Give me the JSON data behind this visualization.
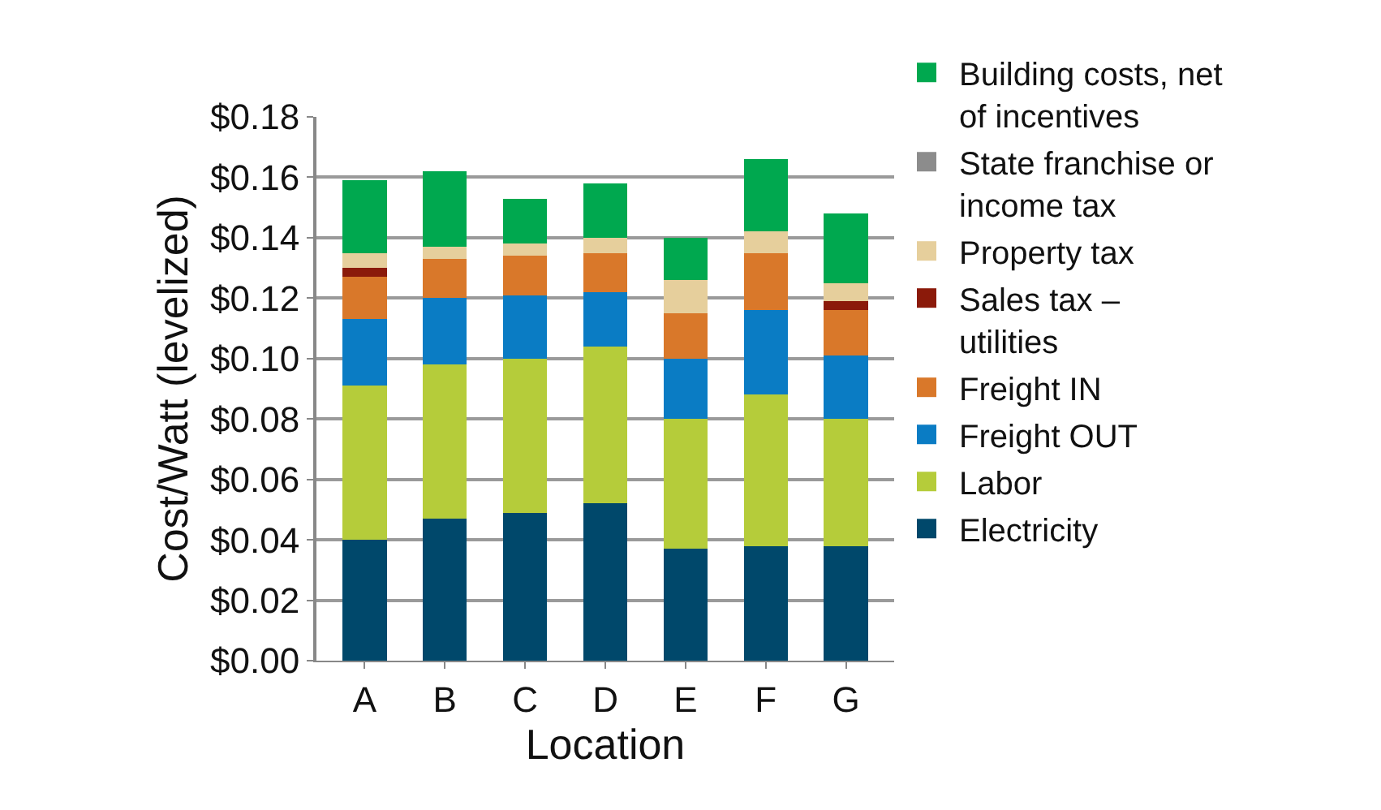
{
  "chart_data": {
    "type": "bar",
    "stacked": true,
    "xlabel": "Location",
    "ylabel": "Cost/Watt (levelized)",
    "categories": [
      "A",
      "B",
      "C",
      "D",
      "E",
      "F",
      "G"
    ],
    "series": [
      {
        "name": "Electricity",
        "color": "#00486b",
        "values": [
          0.04,
          0.047,
          0.049,
          0.052,
          0.037,
          0.038,
          0.038
        ]
      },
      {
        "name": "Labor",
        "color": "#b5cc3a",
        "values": [
          0.051,
          0.051,
          0.051,
          0.052,
          0.043,
          0.05,
          0.042
        ]
      },
      {
        "name": "Freight OUT",
        "color": "#0a7cc4",
        "values": [
          0.022,
          0.022,
          0.021,
          0.018,
          0.02,
          0.028,
          0.021
        ]
      },
      {
        "name": "Freight IN",
        "color": "#d9782a",
        "values": [
          0.014,
          0.013,
          0.013,
          0.013,
          0.015,
          0.019,
          0.015
        ]
      },
      {
        "name": "Sales tax – utilities",
        "color": "#8b1a0a",
        "values": [
          0.003,
          0,
          0,
          0,
          0,
          0,
          0.003
        ]
      },
      {
        "name": "Property tax",
        "color": "#e6cf9c",
        "values": [
          0.005,
          0.004,
          0.004,
          0.005,
          0.011,
          0.007,
          0.006
        ]
      },
      {
        "name": "State franchise or income tax",
        "color": "#8c8c8c",
        "values": [
          0,
          0,
          0,
          0,
          0,
          0,
          0
        ]
      },
      {
        "name": "Building costs, net of incentives",
        "color": "#00a84f",
        "values": [
          0.024,
          0.025,
          0.015,
          0.018,
          0.014,
          0.024,
          0.023
        ]
      }
    ],
    "ylim": [
      0,
      0.18
    ],
    "yticks": [
      {
        "value": 0,
        "label": "$0.00"
      },
      {
        "value": 0.02,
        "label": "$0.02"
      },
      {
        "value": 0.04,
        "label": "$0.04"
      },
      {
        "value": 0.06,
        "label": "$0.06"
      },
      {
        "value": 0.08,
        "label": "$0.08"
      },
      {
        "value": 0.1,
        "label": "$0.10"
      },
      {
        "value": 0.12,
        "label": "$0.12"
      },
      {
        "value": 0.14,
        "label": "$0.14"
      },
      {
        "value": 0.16,
        "label": "$0.16"
      },
      {
        "value": 0.18,
        "label": "$0.18"
      }
    ],
    "grid": "y",
    "legend": "right"
  }
}
